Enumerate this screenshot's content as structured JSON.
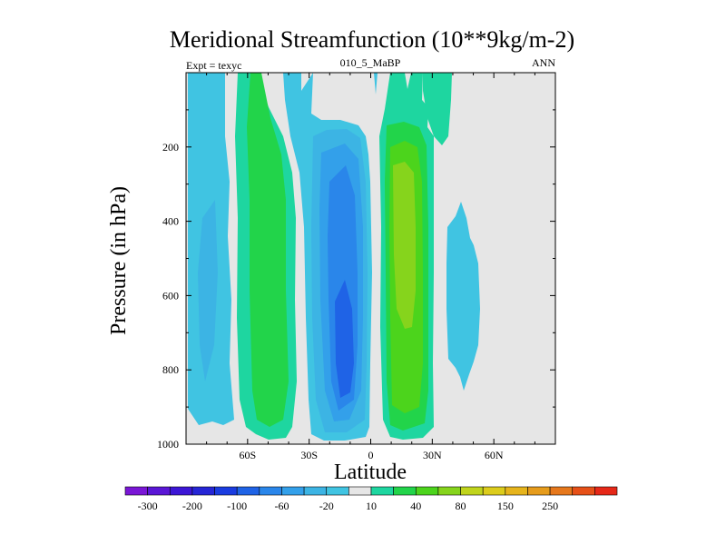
{
  "chart_data": {
    "type": "heatmap",
    "title": "Meridional Streamfunction (10**9kg/m-2)",
    "left_string": "Expt = texyc",
    "center_string": "010_5_MaBP",
    "right_string": "ANN",
    "xlabel": "Latitude",
    "ylabel": "Pressure (in hPa)",
    "xlim": [
      -90,
      90
    ],
    "ylim": [
      1000,
      0
    ],
    "x_ticks": [
      -60,
      -30,
      0,
      30,
      60
    ],
    "x_tick_labels": [
      "60S",
      "30S",
      "0",
      "30N",
      "60N"
    ],
    "y_ticks": [
      200,
      400,
      600,
      800,
      1000
    ],
    "y_tick_labels": [
      "200",
      "400",
      "600",
      "800",
      "1000"
    ],
    "missing_color": "#e6e6e6",
    "colorbar": {
      "colors": [
        "#7a16d6",
        "#5a16d6",
        "#3c16d6",
        "#2626d6",
        "#1a3ce0",
        "#1f63e6",
        "#2a86ea",
        "#33a0ea",
        "#3cb4e4",
        "#40c4e2",
        "#e6e6e6",
        "#1ed6a0",
        "#22d44a",
        "#4cd41c",
        "#86d41c",
        "#c0d41c",
        "#dccc1c",
        "#e6b41c",
        "#e69c1c",
        "#e6781c",
        "#e65018",
        "#e62818"
      ],
      "labels": [
        "-300",
        "-200",
        "-100",
        "-60",
        "-20",
        "10",
        "40",
        "80",
        "150",
        "250"
      ],
      "label_boundaries": [
        1,
        3,
        5,
        7,
        9,
        11,
        13,
        15,
        17,
        19
      ]
    },
    "features": [
      {
        "sign": "negative",
        "lat_range": [
          -90,
          -75
        ],
        "p_range": [
          30,
          960
        ],
        "core_value": -20,
        "description_level": "weak"
      },
      {
        "sign": "positive",
        "lat_range": [
          -63,
          -45
        ],
        "p_range": [
          30,
          980
        ],
        "core_value": 30,
        "description_level": "moderate"
      },
      {
        "sign": "negative",
        "lat_range": [
          -33,
          2
        ],
        "p_range": [
          120,
          985
        ],
        "core_value": -100,
        "description_level": "strong"
      },
      {
        "sign": "positive",
        "lat_range": [
          10,
          28
        ],
        "p_range": [
          30,
          985
        ],
        "core_value": 80,
        "description_level": "strong"
      },
      {
        "sign": "negative",
        "lat_range": [
          37,
          55
        ],
        "p_range": [
          400,
          820
        ],
        "core_value": -10,
        "description_level": "weak"
      }
    ]
  }
}
